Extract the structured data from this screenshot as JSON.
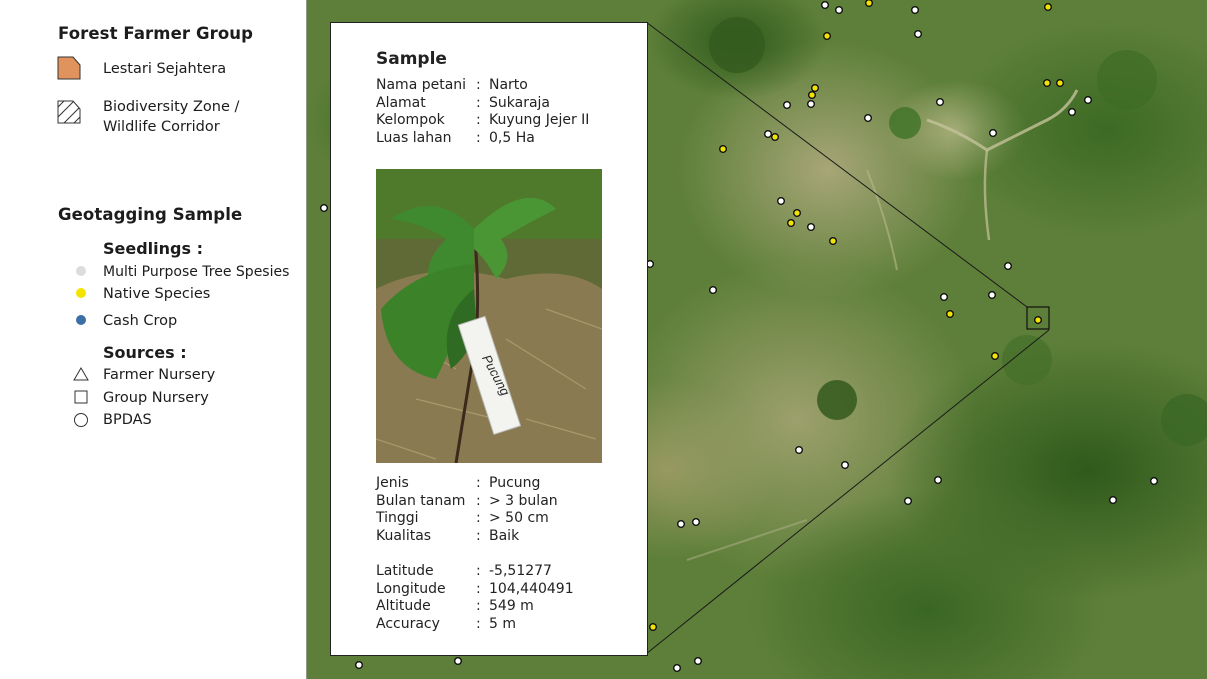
{
  "legend": {
    "group_heading": "Forest Farmer Group",
    "group_items": [
      {
        "label": "Lestari Sejahtera",
        "color": "#e0935c"
      },
      {
        "label": "Biodiversity Zone /\nWildlife Corridor"
      }
    ],
    "geotag_heading": "Geotagging Sample",
    "seedlings_heading": "Seedlings :",
    "seedlings": [
      {
        "label": "Multi Purpose Tree Spesies",
        "color": "#dcdcdc"
      },
      {
        "label": "Native Species",
        "color": "#f2e300"
      },
      {
        "label": "Cash Crop",
        "color": "#3b6fa6"
      }
    ],
    "sources_heading": "Sources :",
    "sources": [
      {
        "label": "Farmer Nursery",
        "icon": "triangle-icon"
      },
      {
        "label": "Group Nursery",
        "icon": "square-icon"
      },
      {
        "label": "BPDAS",
        "icon": "circle-icon"
      }
    ]
  },
  "sample": {
    "title": "Sample",
    "farmer_fields": [
      {
        "key": "Nama petani",
        "value": "Narto"
      },
      {
        "key": "Alamat",
        "value": "Sukaraja"
      },
      {
        "key": "Kelompok",
        "value": "Kuyung Jejer II"
      },
      {
        "key": "Luas lahan",
        "value": "0,5 Ha"
      }
    ],
    "photo_tag_text": "Pucung",
    "plant_fields": [
      {
        "key": "Jenis",
        "value": "Pucung"
      },
      {
        "key": "Bulan tanam",
        "value": "> 3 bulan"
      },
      {
        "key": "Tinggi",
        "value": "> 50 cm"
      },
      {
        "key": "Kualitas",
        "value": "Baik"
      }
    ],
    "location_fields": [
      {
        "key": "Latitude",
        "value": "-5,51277"
      },
      {
        "key": "Longitude",
        "value": "104,440491"
      },
      {
        "key": "Altitude",
        "value": "549 m"
      },
      {
        "key": "Accuracy",
        "value": "5 m"
      }
    ],
    "separator": ":"
  }
}
